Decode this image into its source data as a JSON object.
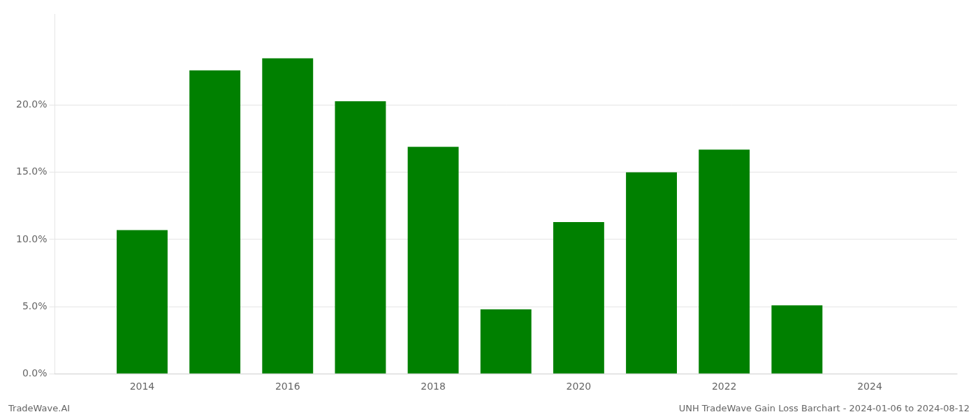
{
  "chart_data": {
    "type": "bar",
    "x": [
      2014,
      2015,
      2016,
      2017,
      2018,
      2019,
      2020,
      2021,
      2022,
      2023
    ],
    "values": [
      0.107,
      0.226,
      0.235,
      0.203,
      0.169,
      0.048,
      0.113,
      0.15,
      0.167,
      0.051
    ],
    "color": "#008000",
    "xlim": [
      2012.8,
      2025.2
    ],
    "xticks": [
      2014,
      2016,
      2018,
      2020,
      2022,
      2024
    ],
    "ylim": [
      0,
      0.268
    ],
    "yticks": [
      {
        "value": 0.0,
        "label": "0.0%"
      },
      {
        "value": 0.05,
        "label": "5.0%"
      },
      {
        "value": 0.1,
        "label": "10.0%"
      },
      {
        "value": 0.15,
        "label": "15.0%"
      },
      {
        "value": 0.2,
        "label": "20.0%"
      }
    ],
    "grid": true,
    "annotations": [
      "TradeWave.AI",
      "UNH TradeWave Gain Loss Barchart - 2024-01-06 to 2024-08-12"
    ]
  }
}
